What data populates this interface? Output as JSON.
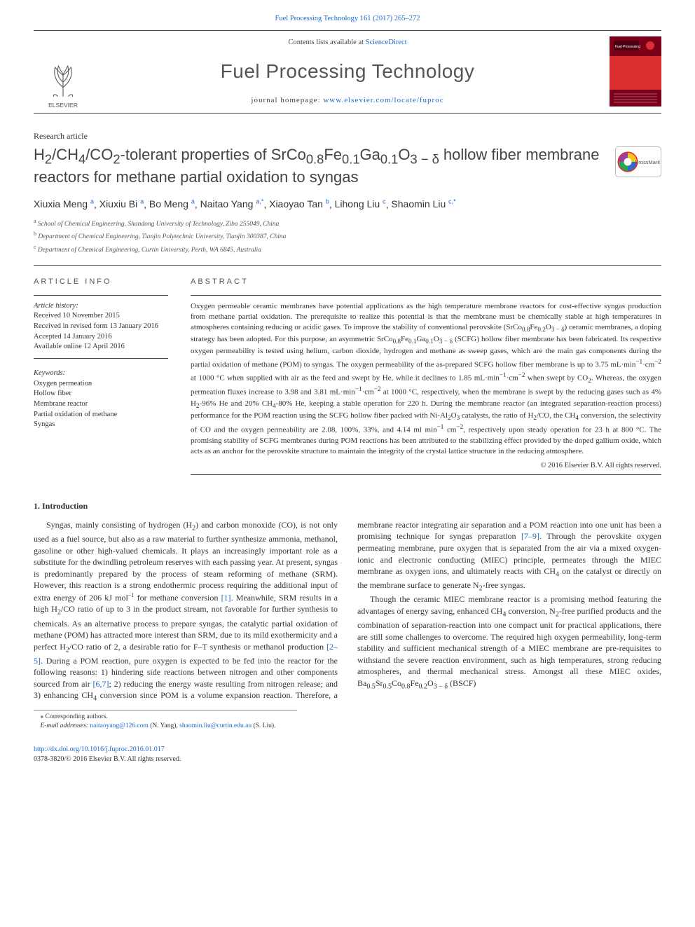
{
  "top_link": {
    "citation": "Fuel Processing Technology 161 (2017) 265–272",
    "href_label": "Fuel Processing Technology 161 (2017) 265–272"
  },
  "header": {
    "contents_text_pre": "Contents lists available at ",
    "contents_link": "ScienceDirect",
    "journal_name": "Fuel Processing Technology",
    "homepage_label": "journal homepage: ",
    "homepage_url": "www.elsevier.com/locate/fuproc",
    "publisher_logo_label": "ELSEVIER",
    "cover_colors": {
      "bg": "#7a0019",
      "accent": "#d92f2f",
      "stripe": "#e0e0e0"
    }
  },
  "article_type": "Research article",
  "title_html": "H<sub>2</sub>/CH<sub>4</sub>/CO<sub>2</sub>-tolerant properties of SrCo<sub>0.8</sub>Fe<sub>0.1</sub>Ga<sub>0.1</sub>O<sub>3 − δ</sub> hollow fiber membrane reactors for methane partial oxidation to syngas",
  "crossmark_label": "CrossMark",
  "authors": [
    {
      "name": "Xiuxia Meng",
      "aff": "a"
    },
    {
      "name": "Xiuxiu Bi",
      "aff": "a"
    },
    {
      "name": "Bo Meng",
      "aff": "a"
    },
    {
      "name": "Naitao Yang",
      "aff": "a,*"
    },
    {
      "name": "Xiaoyao Tan",
      "aff": "b"
    },
    {
      "name": "Lihong Liu",
      "aff": "c"
    },
    {
      "name": "Shaomin Liu",
      "aff": "c,*"
    }
  ],
  "affiliations": [
    {
      "key": "a",
      "text": "School of Chemical Engineering, Shandong University of Technology, Zibo 255049, China"
    },
    {
      "key": "b",
      "text": "Department of Chemical Engineering, Tianjin Polytechnic University, Tianjin 300387, China"
    },
    {
      "key": "c",
      "text": "Department of Chemical Engineering, Curtin University, Perth, WA 6845, Australia"
    }
  ],
  "article_info": {
    "heading": "article info",
    "history_label": "Article history:",
    "history": [
      "Received 10 November 2015",
      "Received in revised form 13 January 2016",
      "Accepted 14 January 2016",
      "Available online 12 April 2016"
    ],
    "keywords_label": "Keywords:",
    "keywords": [
      "Oxygen permeation",
      "Hollow fiber",
      "Membrane reactor",
      "Partial oxidation of methane",
      "Syngas"
    ]
  },
  "abstract": {
    "heading": "abstract",
    "text_html": "Oxygen permeable ceramic membranes have potential applications as the high temperature membrane reactors for cost-effective syngas production from methane partial oxidation. The prerequisite to realize this potential is that the membrane must be chemically stable at high temperatures in atmospheres containing reducing or acidic gases. To improve the stability of conventional perovskite (SrCo<sub>0.8</sub>Fe<sub>0.2</sub>O<sub>3 − δ</sub>) ceramic membranes, a doping strategy has been adopted. For this purpose, an asymmetric SrCo<sub>0.8</sub>Fe<sub>0.1</sub>Ga<sub>0.1</sub>O<sub>3 − δ</sub> (SCFG) hollow fiber membrane has been fabricated. Its respective oxygen permeability is tested using helium, carbon dioxide, hydrogen and methane as sweep gases, which are the main gas components during the partial oxidation of methane (POM) to syngas. The oxygen permeability of the as-prepared SCFG hollow fiber membrane is up to 3.75 mL·min<sup>−1</sup>·cm<sup>−2</sup> at 1000 °C when supplied with air as the feed and swept by He, while it declines to 1.85 mL·min<sup>−1</sup>·cm<sup>−2</sup> when swept by CO<sub>2</sub>. Whereas, the oxygen permeation fluxes increase to 3.98 and 3.81 mL·min<sup>−1</sup>·cm<sup>−2</sup> at 1000 °C, respectively, when the membrane is swept by the reducing gases such as 4% H<sub>2</sub>-96% He and 20% CH<sub>4</sub>-80% He, keeping a stable operation for 220 h. During the membrane reactor (an integrated separation-reaction process) performance for the POM reaction using the SCFG hollow fiber packed with Ni-Al<sub>2</sub>O<sub>3</sub> catalysts, the ratio of H<sub>2</sub>/CO, the CH<sub>4</sub> conversion, the selectivity of CO and the oxygen permeability are 2.08, 100%, 33%, and 4.14 ml min<sup>−1</sup> cm<sup>−2</sup>, respectively upon steady operation for 23 h at 800 °C. The promising stability of SCFG membranes during POM reactions has been attributed to the stabilizing effect provided by the doped gallium oxide, which acts as an anchor for the perovskite structure to maintain the integrity of the crystal lattice structure in the reducing atmosphere.",
    "copyright": "© 2016 Elsevier B.V. All rights reserved."
  },
  "body": {
    "section_heading": "1. Introduction",
    "paragraphs_html": [
      "Syngas, mainly consisting of hydrogen (H<sub>2</sub>) and carbon monoxide (CO), is not only used as a fuel source, but also as a raw material to further synthesize ammonia, methanol, gasoline or other high-valued chemicals. It plays an increasingly important role as a substitute for the dwindling petroleum reserves with each passing year. At present, syngas is predominantly prepared by the process of steam reforming of methane (SRM). However, this reaction is a strong endothermic process requiring the additional input of extra energy of 206 kJ mol<sup>−1</sup> for methane conversion <a href=\"#\">[1]</a>. Meanwhile, SRM results in a high H<sub>2</sub>/CO ratio of up to 3 in the product stream, not favorable for further synthesis to chemicals. As an alternative process to prepare syngas, the catalytic partial oxidation of methane (POM) has attracted more interest than SRM, due to its mild exothermicity and a perfect H<sub>2</sub>/CO ratio of 2, a desirable ratio for F–T synthesis or methanol production <a href=\"#\">[2–5]</a>. During a POM reaction, pure oxygen is expected to be fed into the reactor for the following reasons: 1) hindering side reactions between nitrogen and other components sourced from air <a href=\"#\">[6,7]</a>; 2) reducing the energy waste resulting from nitrogen release; and 3) enhancing CH<sub>4</sub> conversion since POM is a volume expansion reaction. Therefore, a membrane reactor integrating air separation and a POM reaction into one unit has been a promising technique for syngas preparation <a href=\"#\">[7–9]</a>. Through the perovskite oxygen permeating membrane, pure oxygen that is separated from the air via a mixed oxygen-ionic and electronic conducting (MIEC) principle, permeates through the MIEC membrane as oxygen ions, and ultimately reacts with CH<sub>4</sub> on the catalyst or directly on the membrane surface to generate N<sub>2</sub>-free syngas.",
      "Though the ceramic MIEC membrane reactor is a promising method featuring the advantages of energy saving, enhanced CH<sub>4</sub> conversion, N<sub>2</sub>-free purified products and the combination of separation-reaction into one compact unit for practical applications, there are still some challenges to overcome. The required high oxygen permeability, long-term stability and sufficient mechanical strength of a MIEC membrane are pre-requisites to withstand the severe reaction environment, such as high temperatures, strong reducing atmospheres, and thermal mechanical stress. Amongst all these MIEC oxides, Ba<sub>0.5</sub>Sr<sub>0.5</sub>Co<sub>0.8</sub>Fe<sub>0.2</sub>O<sub>3 − δ</sub> (BSCF)"
    ]
  },
  "footnote": {
    "marker": "⁎",
    "label": "Corresponding authors.",
    "email_label": "E-mail addresses:",
    "emails": [
      {
        "addr": "naitaoyang@126.com",
        "who": "(N. Yang)"
      },
      {
        "addr": "shaomin.liu@curtin.edu.au",
        "who": "(S. Liu)"
      }
    ]
  },
  "footer": {
    "doi": "http://dx.doi.org/10.1016/j.fuproc.2016.01.017",
    "issn_line": "0378-3820/© 2016 Elsevier B.V. All rights reserved."
  },
  "colors": {
    "link": "#1b69c9",
    "text": "#333333",
    "rule": "#444444",
    "elsevier_orange": "#ff7a00",
    "elsevier_text": "#555555",
    "crossmark_ring": "#e42b2b",
    "crossmark_inner_y": "#f5c518",
    "crossmark_inner_b": "#2f6ec4",
    "crossmark_inner_g": "#2aa74a"
  }
}
